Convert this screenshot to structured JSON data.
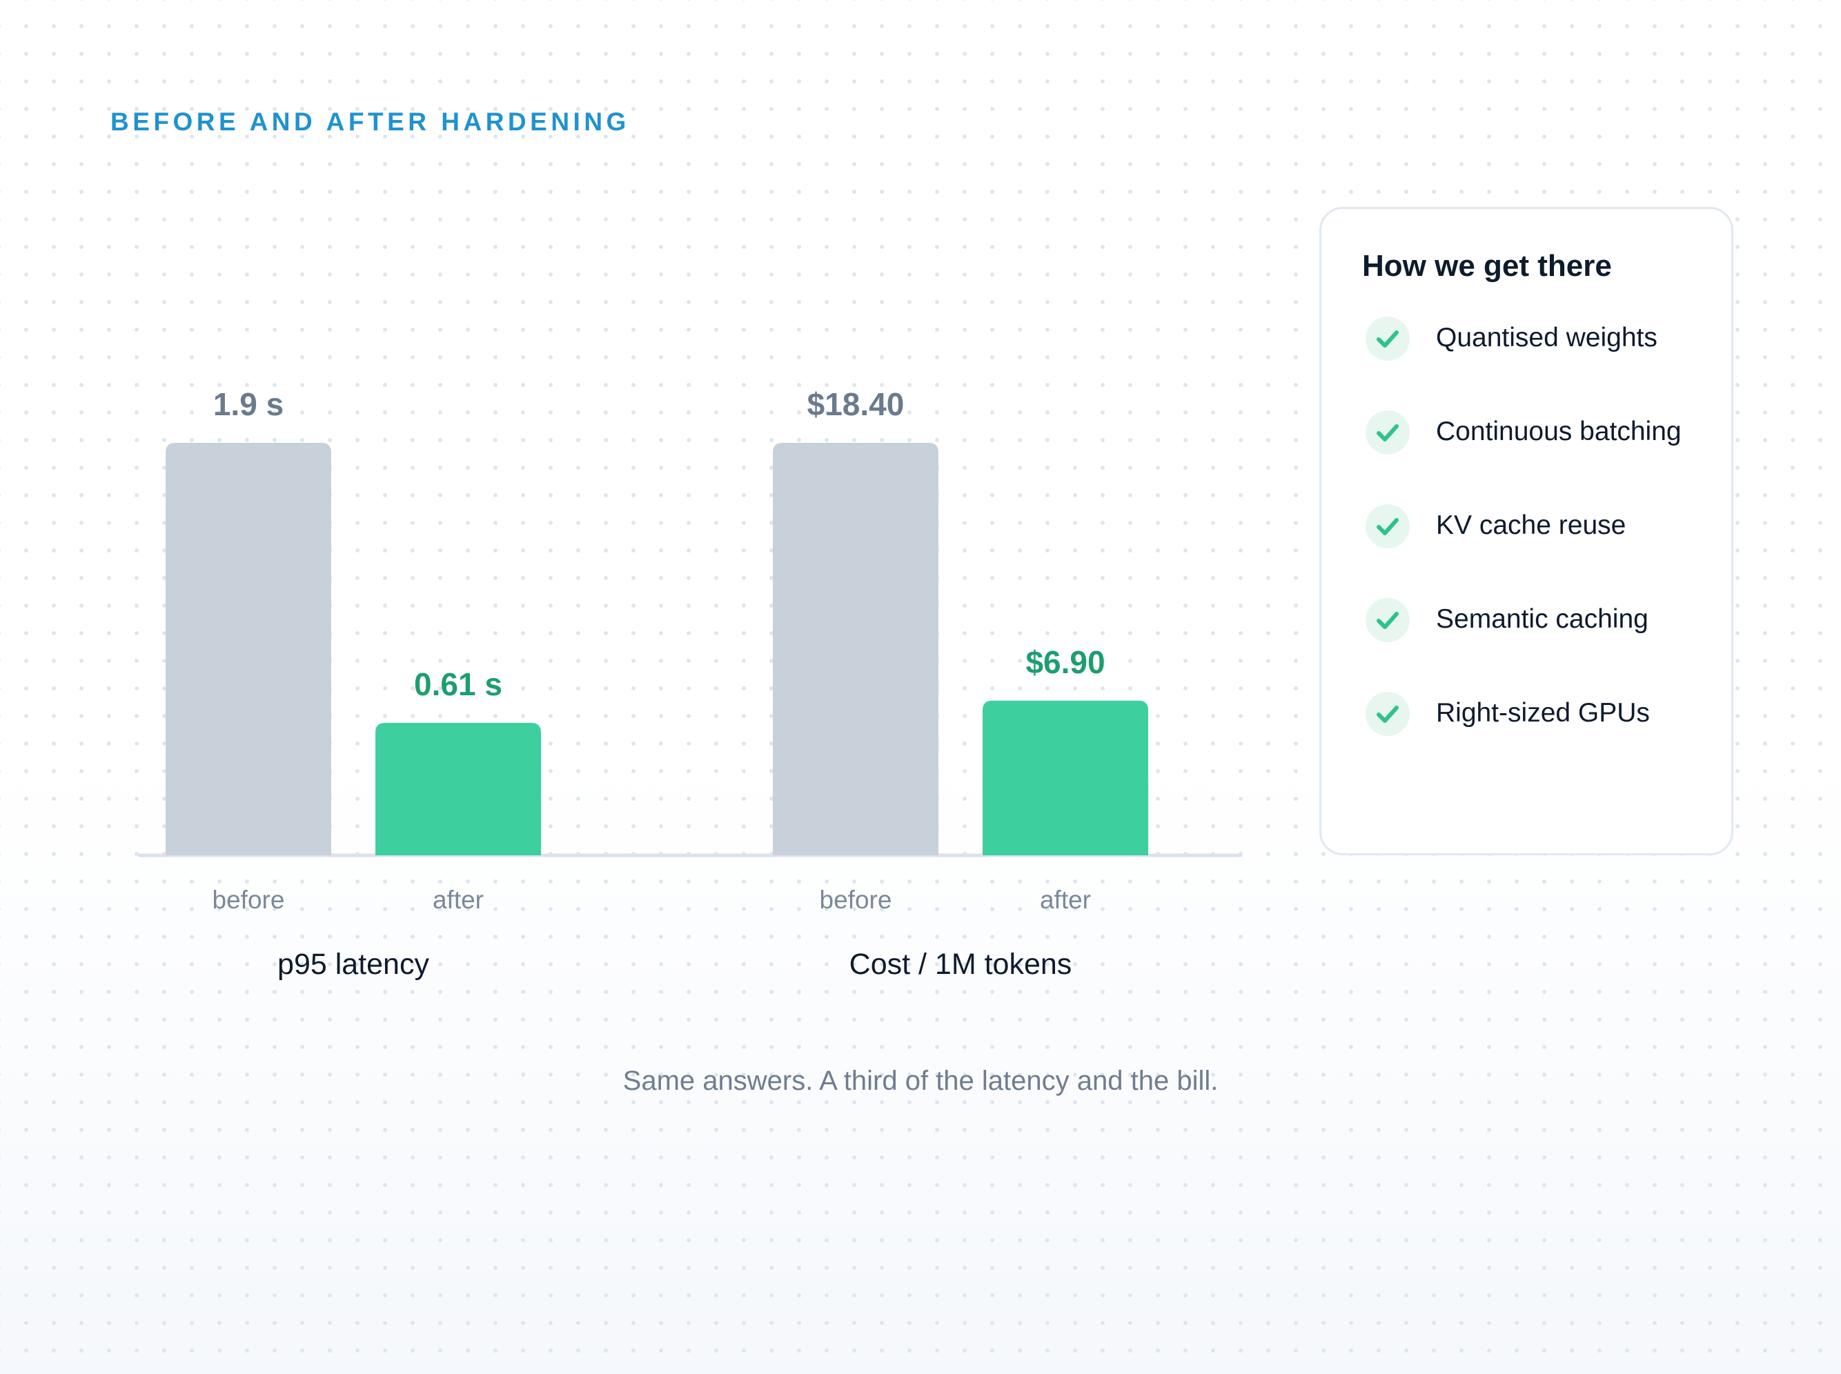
{
  "header": {
    "eyebrow": "BEFORE AND AFTER HARDENING"
  },
  "chart_data": {
    "type": "bar",
    "groups": [
      {
        "name": "p95 latency",
        "bars": [
          {
            "category": "before",
            "value": 1.9,
            "label": "1.9 s"
          },
          {
            "category": "after",
            "value": 0.61,
            "label": "0.61 s"
          }
        ]
      },
      {
        "name": "Cost / 1M tokens",
        "bars": [
          {
            "category": "before",
            "value": 18.4,
            "label": "$18.40"
          },
          {
            "category": "after",
            "value": 6.9,
            "label": "$6.90"
          }
        ]
      }
    ],
    "colors": {
      "before": "#c8d0da",
      "after": "#3ecf9f",
      "before_label": "#6b7a8d",
      "after_label": "#1e9e6e"
    }
  },
  "caption": "Same answers. A third of the latency and the bill.",
  "card": {
    "title": "How we get there",
    "items": [
      {
        "label": "Quantised weights",
        "icon": "check-icon"
      },
      {
        "label": "Continuous batching",
        "icon": "check-icon"
      },
      {
        "label": "KV cache reuse",
        "icon": "check-icon"
      },
      {
        "label": "Semantic caching",
        "icon": "check-icon"
      },
      {
        "label": "Right-sized GPUs",
        "icon": "check-icon"
      }
    ],
    "check_color": "#2ec28f"
  }
}
